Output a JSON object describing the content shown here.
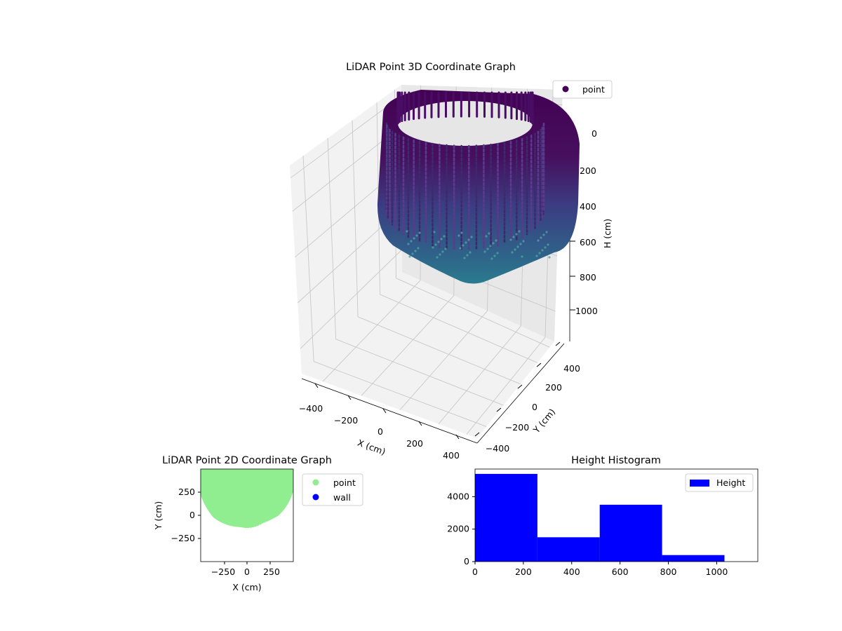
{
  "chart_data": [
    {
      "type": "scatter3d",
      "title": "LiDAR Point 3D Coordinate Graph",
      "xlabel": "X (cm)",
      "ylabel": "Y (cm)",
      "zlabel": "H (cm)",
      "x_ticks": [
        "−400",
        "−200",
        "0",
        "200",
        "400"
      ],
      "y_ticks": [
        "−400",
        "−200",
        "0",
        "200",
        "400"
      ],
      "z_ticks": [
        "0",
        "200",
        "400",
        "600",
        "800",
        "1000"
      ],
      "xlim": [
        -450,
        450
      ],
      "ylim": [
        -450,
        450
      ],
      "zlim": [
        1100,
        0
      ],
      "z_axis_inverted": true,
      "colormap": "viridis",
      "legend": [
        {
          "label": "point",
          "color": "#440154"
        }
      ],
      "legend_position": "upper-right",
      "shape": "bowl of vertical scan strips, radius about 400 cm at H 0, narrowing to a tip near H 780"
    },
    {
      "type": "scatter",
      "title": "LiDAR Point 2D Coordinate Graph",
      "xlabel": "X (cm)",
      "ylabel": "Y (cm)",
      "x_ticks": [
        "−250",
        "0",
        "250"
      ],
      "y_ticks": [
        "250",
        "0",
        "−250"
      ],
      "xlim": [
        -450,
        450
      ],
      "ylim": [
        -450,
        450
      ],
      "legend": [
        {
          "label": "point",
          "color": "#90ee90"
        },
        {
          "label": "wall",
          "color": "#0000ff"
        }
      ],
      "legend_position": "outside-right"
    },
    {
      "type": "bar",
      "title": "Height Histogram",
      "bins": [
        {
          "from": 0,
          "to": 258,
          "count": 5400
        },
        {
          "from": 258,
          "to": 516,
          "count": 1500
        },
        {
          "from": 516,
          "to": 774,
          "count": 3500
        },
        {
          "from": 774,
          "to": 1032,
          "count": 400
        }
      ],
      "x_ticks": [
        "0",
        "200",
        "400",
        "600",
        "800",
        "1000"
      ],
      "y_ticks": [
        "0",
        "2000",
        "4000"
      ],
      "xlim": [
        0,
        1170
      ],
      "ylim": [
        0,
        5700
      ],
      "color": "#0000ff",
      "legend": [
        {
          "label": "Height",
          "color": "#0000ff"
        }
      ],
      "legend_position": "upper-right"
    }
  ]
}
